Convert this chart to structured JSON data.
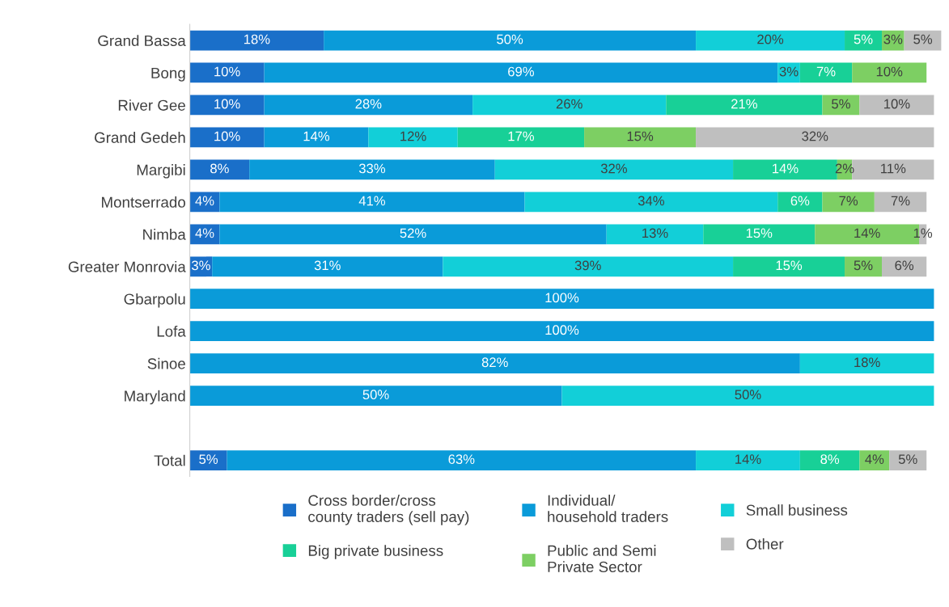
{
  "chart_data": {
    "type": "bar",
    "orientation": "horizontal",
    "stacked": true,
    "legend": "bottom",
    "grid": false,
    "categories": [
      "Grand Bassa",
      "Bong",
      "River Gee",
      "Grand Gedeh",
      "Margibi",
      "Montserrado",
      "Nimba",
      "Greater Monrovia",
      "Gbarpolu",
      "Lofa",
      "Sinoe",
      "Maryland",
      null,
      "Total"
    ],
    "series": [
      {
        "name": "Cross border/cross\ncounty traders (sell pay)",
        "color": "#1a6fc9",
        "values": [
          18,
          10,
          10,
          10,
          8,
          4,
          4,
          3,
          null,
          null,
          null,
          null,
          null,
          5
        ],
        "value_labels": [
          "18%",
          "10%",
          "10%",
          "10%",
          "8%",
          "4%",
          "4%",
          "3%",
          null,
          null,
          null,
          null,
          null,
          "5%"
        ]
      },
      {
        "name": "Individual/\nhousehold traders",
        "color": "#0a9bd9",
        "values": [
          50,
          69,
          28,
          14,
          33,
          41,
          52,
          31,
          100,
          100,
          82,
          50,
          null,
          63
        ],
        "value_labels": [
          "50%",
          "69%",
          "28%",
          "14%",
          "33%",
          "41%",
          "52%",
          "31%",
          "100%",
          "100%",
          "82%",
          "50%",
          null,
          "63%"
        ]
      },
      {
        "name": "Small business",
        "color": "#12cfd8",
        "values": [
          20,
          3,
          26,
          12,
          32,
          34,
          13,
          39,
          null,
          null,
          18,
          50,
          null,
          14
        ],
        "value_labels": [
          "20%",
          "3%",
          "26%",
          "12%",
          "32%",
          "34%",
          "13%",
          "39%",
          null,
          null,
          "18%",
          "50%",
          null,
          "14%"
        ]
      },
      {
        "name": "Big private business",
        "color": "#18d097",
        "values": [
          5,
          7,
          21,
          17,
          14,
          6,
          15,
          15,
          null,
          null,
          null,
          null,
          null,
          8
        ],
        "value_labels": [
          "5%",
          "7%",
          "21%",
          "17%",
          "14%",
          "6%",
          "15%",
          "15%",
          null,
          null,
          null,
          null,
          null,
          "8%"
        ]
      },
      {
        "name": "Public and Semi\nPrivate Sector",
        "color": "#7dcf63",
        "values": [
          3,
          10,
          5,
          15,
          2,
          7,
          14,
          5,
          null,
          null,
          null,
          null,
          null,
          4
        ],
        "value_labels": [
          "3%",
          "10%",
          "5%",
          "15%",
          "2%",
          "7%",
          "14%",
          "5%",
          null,
          null,
          null,
          null,
          null,
          "4%"
        ]
      },
      {
        "name": "Other",
        "color": "#bfbfbf",
        "values": [
          5,
          null,
          10,
          32,
          11,
          7,
          1,
          6,
          null,
          null,
          null,
          null,
          null,
          5
        ],
        "value_labels": [
          "5%",
          null,
          "10%",
          "32%",
          "11%",
          "7%",
          "1%",
          "6%",
          null,
          null,
          null,
          null,
          null,
          "5%"
        ]
      }
    ]
  }
}
